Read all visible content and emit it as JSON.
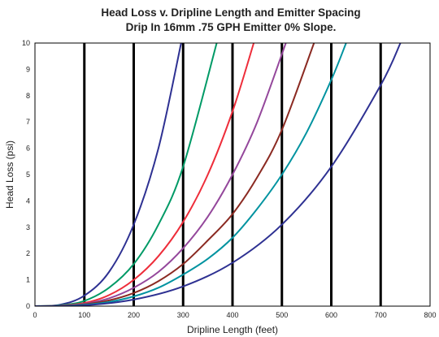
{
  "chart_data": {
    "type": "line",
    "title": "Head Loss v. Dripline Length and Emitter Spacing",
    "subtitle": "Drip In 16mm .75 GPH Emitter 0% Slope.",
    "xlabel": "Dripline Length (feet)",
    "ylabel": "Head Loss (psi)",
    "xlim": [
      0,
      800
    ],
    "ylim": [
      0,
      10
    ],
    "x_ticks": [
      "0",
      "100",
      "200",
      "300",
      "400",
      "500",
      "600",
      "700",
      "800"
    ],
    "y_ticks": [
      "0",
      "1",
      "2",
      "3",
      "4",
      "5",
      "6",
      "7",
      "8",
      "9",
      "10"
    ],
    "grid": "vertical",
    "legend": "none",
    "series": [
      {
        "color": "#2e3192",
        "x": [
          0,
          50,
          100,
          150,
          200,
          250,
          296
        ],
        "y": [
          0,
          0.05,
          0.4,
          1.3,
          3.1,
          6.0,
          10
        ]
      },
      {
        "color": "#009a66",
        "x": [
          0,
          50,
          100,
          150,
          200,
          250,
          300,
          368
        ],
        "y": [
          0,
          0.03,
          0.2,
          0.7,
          1.6,
          3.1,
          5.3,
          10
        ]
      },
      {
        "color": "#ee2d3a",
        "x": [
          0,
          50,
          100,
          150,
          200,
          250,
          300,
          350,
          400,
          443
        ],
        "y": [
          0,
          0.02,
          0.12,
          0.42,
          1.0,
          1.9,
          3.2,
          5.0,
          7.4,
          10
        ]
      },
      {
        "color": "#94479b",
        "x": [
          0,
          50,
          100,
          150,
          200,
          250,
          300,
          350,
          400,
          450,
          508
        ],
        "y": [
          0,
          0.01,
          0.09,
          0.3,
          0.7,
          1.3,
          2.2,
          3.4,
          5.0,
          7.0,
          10
        ]
      },
      {
        "color": "#8b2a22",
        "x": [
          0,
          50,
          100,
          150,
          200,
          250,
          300,
          350,
          400,
          450,
          500,
          565
        ],
        "y": [
          0,
          0.01,
          0.07,
          0.22,
          0.5,
          0.95,
          1.6,
          2.5,
          3.5,
          4.9,
          6.7,
          10
        ]
      },
      {
        "color": "#0093a0",
        "x": [
          0,
          50,
          100,
          150,
          200,
          250,
          300,
          350,
          400,
          450,
          500,
          550,
          600,
          630
        ],
        "y": [
          0,
          0.01,
          0.05,
          0.16,
          0.37,
          0.7,
          1.2,
          1.8,
          2.6,
          3.7,
          5.0,
          6.6,
          8.6,
          10
        ]
      },
      {
        "color": "#2e3192",
        "x": [
          0,
          100,
          200,
          300,
          400,
          500,
          600,
          700,
          740
        ],
        "y": [
          0,
          0.03,
          0.25,
          0.75,
          1.65,
          3.1,
          5.3,
          8.4,
          10
        ]
      }
    ]
  }
}
